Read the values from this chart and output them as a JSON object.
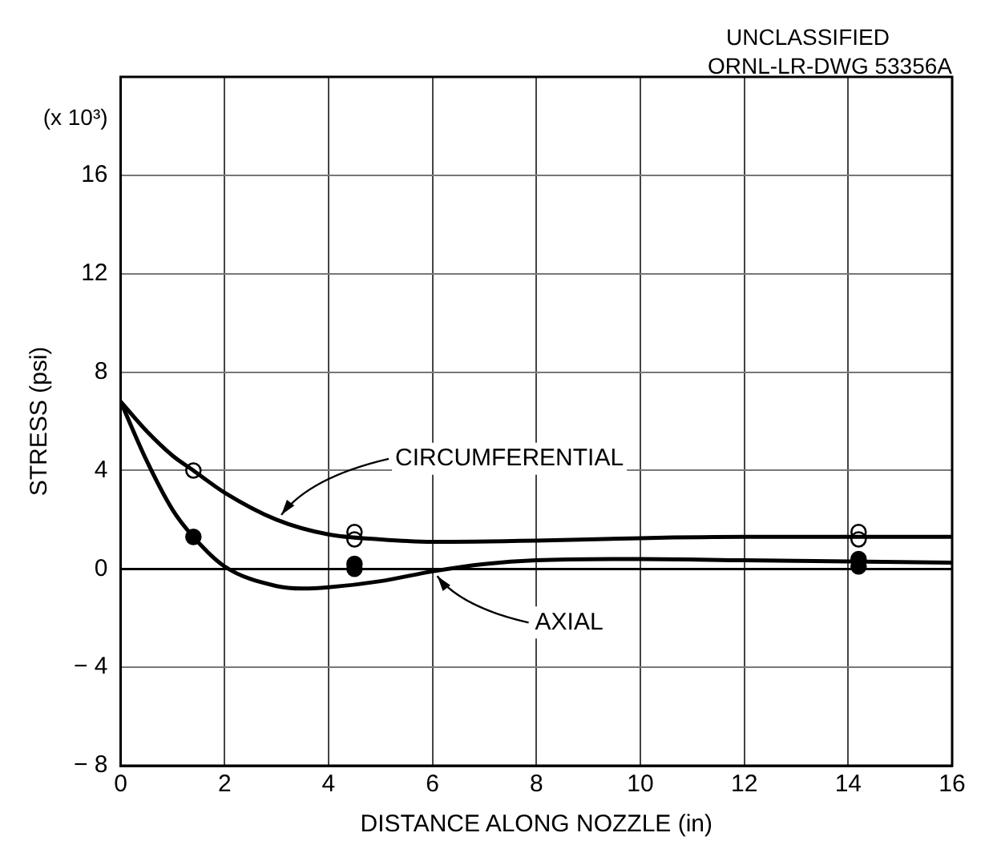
{
  "chart_data": {
    "type": "line",
    "xlabel": "DISTANCE ALONG NOZZLE (in)",
    "ylabel": "STRESS (psi)",
    "annotations": [
      "UNCLASSIFIED",
      "ORNL-LR-DWG 53356A",
      "(x 10³)"
    ],
    "xlim": [
      0,
      16
    ],
    "xticks": [
      0,
      2,
      4,
      6,
      8,
      10,
      12,
      14,
      16
    ],
    "ylim": [
      -8,
      20
    ],
    "yticks": [
      -8,
      -4,
      0,
      4,
      8,
      12,
      16,
      {
        "value": 20,
        "label": null
      }
    ],
    "grid": true,
    "legend": false,
    "series": [
      {
        "name": "CIRCUMFERENTIAL",
        "color": "#000000",
        "marker": "none",
        "x": [
          0,
          0.5,
          1,
          1.4,
          2,
          3,
          4,
          5,
          6,
          8,
          10,
          12,
          14,
          16
        ],
        "values": [
          6.8,
          5.6,
          4.6,
          4.0,
          3.1,
          2.0,
          1.4,
          1.2,
          1.1,
          1.15,
          1.25,
          1.3,
          1.3,
          1.3
        ]
      },
      {
        "name": "AXIAL",
        "color": "#000000",
        "marker": "none",
        "x": [
          0,
          0.5,
          1,
          1.4,
          2,
          3,
          3.5,
          4,
          5,
          6,
          7,
          8,
          10,
          12,
          14,
          16
        ],
        "values": [
          6.8,
          4.4,
          2.4,
          1.3,
          0.1,
          -0.7,
          -0.8,
          -0.75,
          -0.5,
          -0.1,
          0.2,
          0.35,
          0.4,
          0.35,
          0.3,
          0.25
        ]
      },
      {
        "type": "scatter",
        "color": "#ffffff",
        "marker": "circle",
        "x": [
          1.4,
          4.5,
          4.5,
          14.2,
          14.2
        ],
        "values": [
          4.0,
          1.5,
          1.2,
          1.5,
          1.2
        ]
      },
      {
        "type": "scatter",
        "color": "#000000",
        "marker": "circle",
        "x": [
          1.4,
          4.5,
          4.5,
          14.2,
          14.2
        ],
        "values": [
          1.3,
          0.2,
          0.0,
          0.4,
          0.1
        ]
      }
    ]
  }
}
